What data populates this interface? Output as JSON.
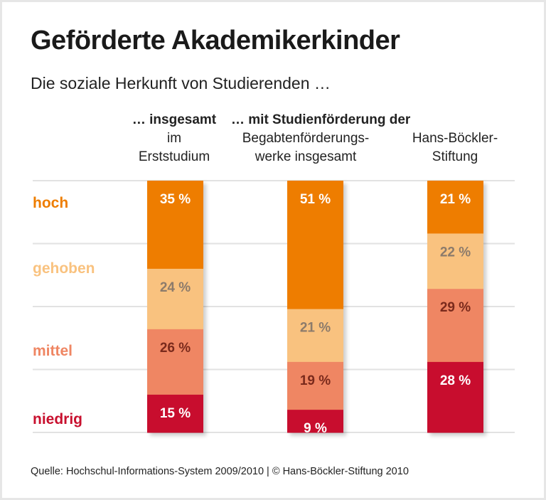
{
  "title": "Geförderte Akademikerkinder",
  "subtitle": "Die soziale Herkunft von Studierenden …",
  "column_headers": {
    "group1_bold": "… insgesamt",
    "group2_bold": "… mit Studienförderung der",
    "col1": [
      "im",
      "Erststudium"
    ],
    "col2": [
      "Begabtenförderungs-",
      "werke insgesamt"
    ],
    "col3": [
      "Hans-Böckler-",
      "Stiftung"
    ]
  },
  "source": "Quelle: Hochschul-Informations-System 2009/2010 | © Hans-Böckler-Stiftung 2010",
  "chart_data": {
    "type": "bar",
    "stacked": true,
    "unit": "%",
    "categories": [
      "insgesamt im Erststudium",
      "Begabtenförderungswerke insgesamt",
      "Hans-Böckler-Stiftung"
    ],
    "series": [
      {
        "name": "hoch",
        "color": "#ee7d00",
        "label_color": "#ffffff",
        "values": [
          35,
          51,
          21
        ]
      },
      {
        "name": "gehoben",
        "color": "#f9c27f",
        "label_color": "#8c7b6b",
        "values": [
          24,
          21,
          22
        ]
      },
      {
        "name": "mittel",
        "color": "#ef8663",
        "label_color": "#7a2a1c",
        "values": [
          26,
          19,
          29
        ]
      },
      {
        "name": "niedrig",
        "color": "#c8102e",
        "label_color": "#ffffff",
        "values": [
          15,
          9,
          28
        ]
      }
    ],
    "ylim": [
      0,
      100
    ],
    "grid": true,
    "legend": "left"
  }
}
